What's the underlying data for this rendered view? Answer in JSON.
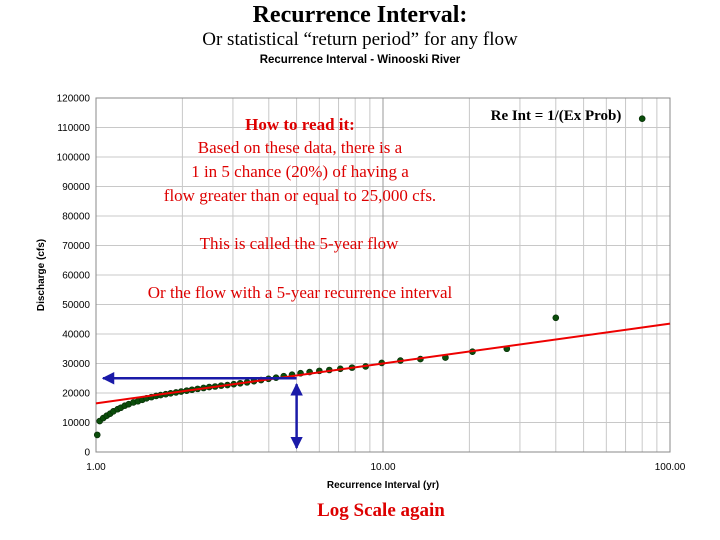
{
  "slide": {
    "title": "Recurrence Interval:",
    "subtitle": "Or statistical “return period” for any flow",
    "footer": "Log Scale again"
  },
  "colors": {
    "annotation_text": "#dd0000",
    "fit_line": "#ee0000",
    "points": "#0b4d0b",
    "arrows": "#1a1aa8",
    "grid": "#c8c8c8"
  },
  "annotations": {
    "formula": "Re Int = 1/(Ex Prob)",
    "how_to_heading": "How to read it:",
    "how_to_lines": [
      "Based on these data, there is a",
      "1 in 5 chance (20%) of having a",
      "flow greater than or equal to 25,000 cfs."
    ],
    "five_year_note": "This is called the 5-year flow",
    "recurrence_note": "Or the flow with a 5-year recurrence interval"
  },
  "chart_data": {
    "type": "scatter",
    "title": "Recurrence Interval - Winooski River",
    "xlabel": "Recurrence Interval (yr)",
    "ylabel": "Discharge (cfs)",
    "x_scale": "log",
    "xlim": [
      1,
      100
    ],
    "ylim": [
      0,
      120000
    ],
    "x_ticks": [
      "1.00",
      "10.00",
      "100.00"
    ],
    "y_ticks": [
      "0",
      "10000",
      "20000",
      "30000",
      "40000",
      "50000",
      "60000",
      "70000",
      "80000",
      "90000",
      "100000",
      "110000",
      "120000"
    ],
    "grid": true,
    "series": [
      {
        "values": [
          [
            1.01,
            5800
          ],
          [
            1.03,
            10500
          ],
          [
            1.06,
            11500
          ],
          [
            1.09,
            12300
          ],
          [
            1.12,
            13000
          ],
          [
            1.15,
            13800
          ],
          [
            1.19,
            14500
          ],
          [
            1.22,
            15000
          ],
          [
            1.26,
            15700
          ],
          [
            1.3,
            16200
          ],
          [
            1.35,
            16800
          ],
          [
            1.4,
            17200
          ],
          [
            1.45,
            17700
          ],
          [
            1.5,
            18200
          ],
          [
            1.56,
            18600
          ],
          [
            1.62,
            19000
          ],
          [
            1.68,
            19300
          ],
          [
            1.75,
            19600
          ],
          [
            1.82,
            19900
          ],
          [
            1.9,
            20200
          ],
          [
            1.98,
            20500
          ],
          [
            2.07,
            20800
          ],
          [
            2.16,
            21100
          ],
          [
            2.26,
            21400
          ],
          [
            2.37,
            21700
          ],
          [
            2.48,
            22000
          ],
          [
            2.6,
            22200
          ],
          [
            2.73,
            22500
          ],
          [
            2.87,
            22700
          ],
          [
            3.02,
            23000
          ],
          [
            3.18,
            23300
          ],
          [
            3.36,
            23600
          ],
          [
            3.55,
            24000
          ],
          [
            3.76,
            24400
          ],
          [
            3.99,
            24800
          ],
          [
            4.24,
            25200
          ],
          [
            4.51,
            25700
          ],
          [
            4.82,
            26200
          ],
          [
            5.16,
            26700
          ],
          [
            5.55,
            27100
          ],
          [
            6.0,
            27500
          ],
          [
            6.5,
            27800
          ],
          [
            7.1,
            28200
          ],
          [
            7.8,
            28600
          ],
          [
            8.7,
            29000
          ],
          [
            9.9,
            30200
          ],
          [
            11.5,
            31000
          ],
          [
            13.5,
            31500
          ],
          [
            16.5,
            32000
          ],
          [
            20.5,
            34000
          ],
          [
            27.0,
            35000
          ],
          [
            40.0,
            45500
          ],
          [
            80.0,
            113000
          ]
        ]
      }
    ],
    "fit_line": {
      "x": [
        1.0,
        100.0
      ],
      "y": [
        16500,
        43500
      ]
    },
    "guide_arrows": {
      "x": 5,
      "y": 25000
    }
  }
}
